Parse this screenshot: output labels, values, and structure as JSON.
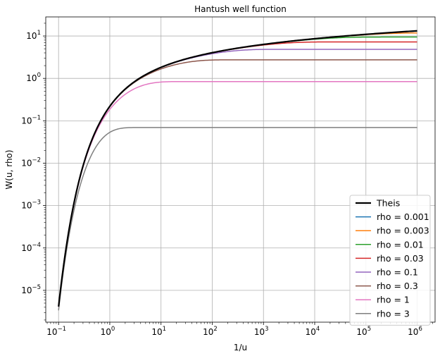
{
  "chart_data": {
    "type": "line",
    "title": "Hantush well function",
    "xlabel": "1/u",
    "ylabel": "W(u, rho)",
    "xscale": "log",
    "yscale": "log",
    "xlim_exponents": [
      -1.25,
      6.35
    ],
    "ylim_exponents": [
      -5.75,
      1.45
    ],
    "x_range": [
      0.1,
      1000000
    ],
    "grid": true,
    "legend_position": "lower-right",
    "x_ticks": [
      {
        "base": "10",
        "exp": "−1",
        "value": 0.1
      },
      {
        "base": "10",
        "exp": "0",
        "value": 1
      },
      {
        "base": "10",
        "exp": "1",
        "value": 10
      },
      {
        "base": "10",
        "exp": "2",
        "value": 100
      },
      {
        "base": "10",
        "exp": "3",
        "value": 1000
      },
      {
        "base": "10",
        "exp": "4",
        "value": 10000
      },
      {
        "base": "10",
        "exp": "5",
        "value": 100000
      },
      {
        "base": "10",
        "exp": "6",
        "value": 1000000
      }
    ],
    "y_ticks": [
      {
        "base": "10",
        "exp": "−5",
        "value": 1e-05
      },
      {
        "base": "10",
        "exp": "−4",
        "value": 0.0001
      },
      {
        "base": "10",
        "exp": "−3",
        "value": 0.001
      },
      {
        "base": "10",
        "exp": "−2",
        "value": 0.01
      },
      {
        "base": "10",
        "exp": "−1",
        "value": 0.1
      },
      {
        "base": "10",
        "exp": "0",
        "value": 1
      },
      {
        "base": "10",
        "exp": "1",
        "value": 10
      }
    ],
    "series": [
      {
        "name": "Theis",
        "rho": 0,
        "color": "#000000",
        "width": 2.2
      },
      {
        "name": "rho = 0.001",
        "rho": 0.001,
        "color": "#1f77b4",
        "width": 1.5
      },
      {
        "name": "rho = 0.003",
        "rho": 0.003,
        "color": "#ff7f0e",
        "width": 1.5
      },
      {
        "name": "rho = 0.01",
        "rho": 0.01,
        "color": "#2ca02c",
        "width": 1.5
      },
      {
        "name": "rho = 0.03",
        "rho": 0.03,
        "color": "#d62728",
        "width": 1.5
      },
      {
        "name": "rho = 0.1",
        "rho": 0.1,
        "color": "#9467bd",
        "width": 1.5
      },
      {
        "name": "rho = 0.3",
        "rho": 0.3,
        "color": "#8c564b",
        "width": 1.5
      },
      {
        "name": "rho = 1",
        "rho": 1,
        "color": "#e377c2",
        "width": 1.5
      },
      {
        "name": "rho = 3",
        "rho": 3,
        "color": "#7f7f7f",
        "width": 1.5
      }
    ],
    "series_points_per_decade": 40
  }
}
